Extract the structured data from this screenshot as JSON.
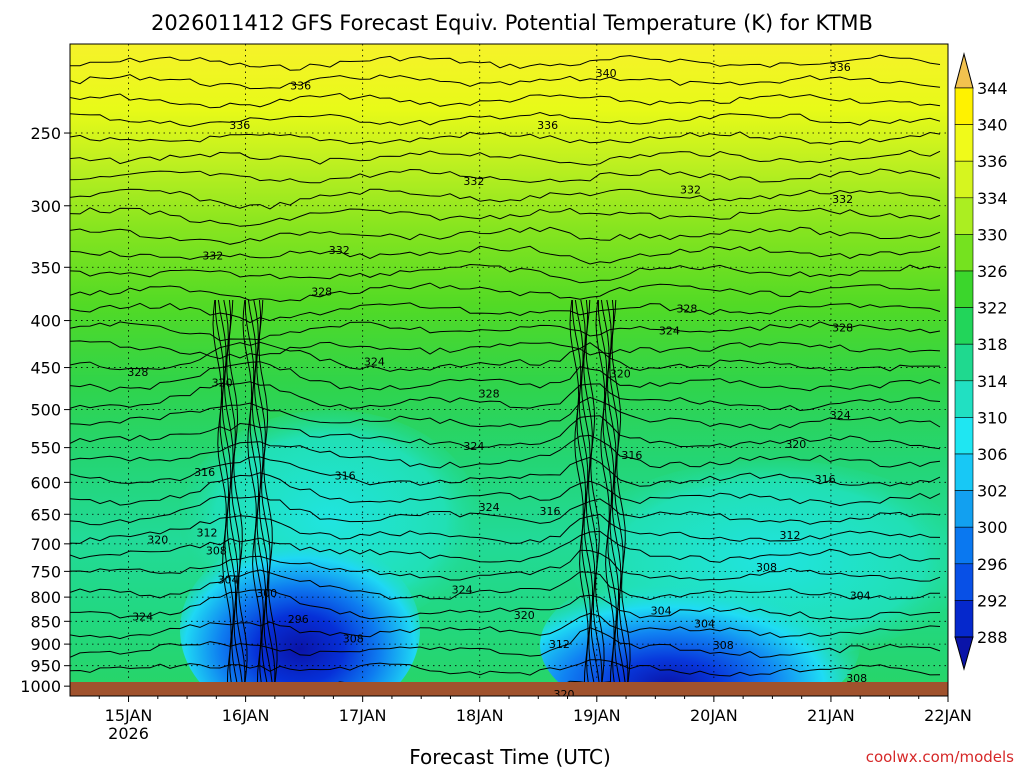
{
  "chart_data": {
    "type": "heatmap",
    "title": "2026011412 GFS Forecast Equiv. Potential Temperature (K) for KTMB",
    "xlabel": "Forecast Time (UTC)",
    "ylabel": "",
    "credit": "coolwx.com/models",
    "x_ticks": [
      {
        "label": "15JAN",
        "sub": "2026",
        "day": 15
      },
      {
        "label": "16JAN",
        "sub": "",
        "day": 16
      },
      {
        "label": "17JAN",
        "sub": "",
        "day": 17
      },
      {
        "label": "18JAN",
        "sub": "",
        "day": 18
      },
      {
        "label": "19JAN",
        "sub": "",
        "day": 19
      },
      {
        "label": "20JAN",
        "sub": "",
        "day": 20
      },
      {
        "label": "21JAN",
        "sub": "",
        "day": 21
      },
      {
        "label": "22JAN",
        "sub": "",
        "day": 22
      }
    ],
    "xlim_days": [
      14.5,
      22.0
    ],
    "y_ticks": [
      250,
      300,
      350,
      400,
      450,
      500,
      550,
      600,
      650,
      700,
      750,
      800,
      850,
      900,
      950,
      1000
    ],
    "ylim_hpa": [
      200,
      1025
    ],
    "y_axis": "pressure, reversed (log)",
    "grid": true,
    "colorbar": {
      "placement": "right",
      "labels": [
        344,
        340,
        336,
        334,
        330,
        326,
        322,
        318,
        314,
        310,
        306,
        302,
        300,
        296,
        292,
        288
      ],
      "colors": [
        "#f2c24f",
        "#fff200",
        "#f0fa1a",
        "#d6f51f",
        "#abee21",
        "#75e21f",
        "#3bd62c",
        "#22d55a",
        "#1fd98f",
        "#21e0c2",
        "#1fe6f2",
        "#18c8f5",
        "#12a0f0",
        "#0a78f0",
        "#0850e6",
        "#0528cc",
        "#0a14a8"
      ]
    },
    "contour_labels": [
      {
        "text": "340",
        "day": 19.08,
        "p": 215
      },
      {
        "text": "336",
        "day": 16.47,
        "p": 222
      },
      {
        "text": "336",
        "day": 21.08,
        "p": 212
      },
      {
        "text": "336",
        "day": 15.95,
        "p": 245
      },
      {
        "text": "336",
        "day": 18.58,
        "p": 245
      },
      {
        "text": "332",
        "day": 17.95,
        "p": 282
      },
      {
        "text": "332",
        "day": 19.8,
        "p": 288
      },
      {
        "text": "332",
        "day": 21.1,
        "p": 295
      },
      {
        "text": "332",
        "day": 15.72,
        "p": 340
      },
      {
        "text": "332",
        "day": 16.8,
        "p": 335
      },
      {
        "text": "328",
        "day": 16.65,
        "p": 372
      },
      {
        "text": "328",
        "day": 19.77,
        "p": 388
      },
      {
        "text": "328",
        "day": 21.1,
        "p": 407
      },
      {
        "text": "328",
        "day": 15.08,
        "p": 455
      },
      {
        "text": "328",
        "day": 18.08,
        "p": 480
      },
      {
        "text": "324",
        "day": 19.62,
        "p": 410
      },
      {
        "text": "324",
        "day": 17.1,
        "p": 443
      },
      {
        "text": "324",
        "day": 21.08,
        "p": 507
      },
      {
        "text": "324",
        "day": 17.95,
        "p": 548
      },
      {
        "text": "324",
        "day": 18.08,
        "p": 638
      },
      {
        "text": "324",
        "day": 17.85,
        "p": 785
      },
      {
        "text": "324",
        "day": 15.12,
        "p": 840
      },
      {
        "text": "320",
        "day": 15.8,
        "p": 467
      },
      {
        "text": "320",
        "day": 19.2,
        "p": 457
      },
      {
        "text": "320",
        "day": 20.7,
        "p": 545
      },
      {
        "text": "320",
        "day": 15.25,
        "p": 692
      },
      {
        "text": "320",
        "day": 18.38,
        "p": 837
      },
      {
        "text": "320",
        "day": 18.72,
        "p": 1020
      },
      {
        "text": "316",
        "day": 15.65,
        "p": 585
      },
      {
        "text": "316",
        "day": 16.85,
        "p": 590
      },
      {
        "text": "316",
        "day": 19.3,
        "p": 560
      },
      {
        "text": "316",
        "day": 20.95,
        "p": 595
      },
      {
        "text": "316",
        "day": 18.6,
        "p": 645
      },
      {
        "text": "312",
        "day": 15.67,
        "p": 680
      },
      {
        "text": "312",
        "day": 20.65,
        "p": 685
      },
      {
        "text": "312",
        "day": 18.68,
        "p": 900
      },
      {
        "text": "308",
        "day": 15.75,
        "p": 712
      },
      {
        "text": "308",
        "day": 20.45,
        "p": 742
      },
      {
        "text": "308",
        "day": 16.92,
        "p": 887
      },
      {
        "text": "308",
        "day": 20.08,
        "p": 902
      },
      {
        "text": "308",
        "day": 21.22,
        "p": 980
      },
      {
        "text": "304",
        "day": 15.85,
        "p": 765
      },
      {
        "text": "304",
        "day": 19.55,
        "p": 827
      },
      {
        "text": "304",
        "day": 21.25,
        "p": 797
      },
      {
        "text": "304",
        "day": 19.92,
        "p": 855
      },
      {
        "text": "300",
        "day": 16.18,
        "p": 792
      },
      {
        "text": "296",
        "day": 16.45,
        "p": 845
      }
    ]
  }
}
